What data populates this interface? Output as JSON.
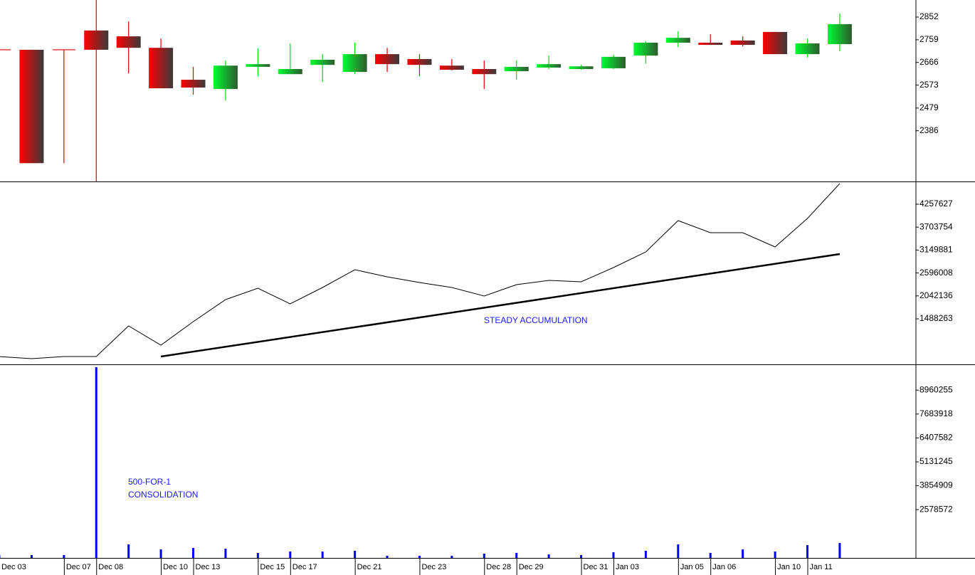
{
  "chart_data": [
    {
      "type": "candlestick",
      "open": [
        2718,
        2718,
        2718,
        2797,
        2773,
        2726,
        2595,
        2557,
        2648,
        2618,
        2656,
        2627,
        2700,
        2680,
        2653,
        2639,
        2630,
        2645,
        2639,
        2642,
        2694,
        2747,
        2747,
        2756,
        2791,
        2700,
        2741
      ],
      "high": [
        2718,
        2718,
        2718,
        2930,
        2834,
        2764,
        2648,
        2674,
        2724,
        2744,
        2700,
        2747,
        2726,
        2700,
        2680,
        2674,
        2674,
        2694,
        2656,
        2697,
        2753,
        2794,
        2782,
        2773,
        2791,
        2764,
        2867
      ],
      "low": [
        2253,
        2253,
        2253,
        2170,
        2621,
        2560,
        2534,
        2510,
        2610,
        2618,
        2586,
        2618,
        2627,
        2610,
        2633,
        2557,
        2595,
        2639,
        2636,
        2639,
        2662,
        2729,
        2738,
        2732,
        2700,
        2686,
        2712
      ],
      "close": [
        2718,
        2253,
        2718,
        2718,
        2726,
        2560,
        2563,
        2653,
        2659,
        2639,
        2677,
        2700,
        2659,
        2656,
        2636,
        2618,
        2648,
        2659,
        2650,
        2689,
        2747,
        2767,
        2738,
        2738,
        2700,
        2744,
        2823
      ],
      "up_color": "#00e000",
      "down_color": "#e00000",
      "ylim": [
        2178,
        2922
      ],
      "yticks": [
        2386,
        2479,
        2573,
        2666,
        2759,
        2852
      ]
    },
    {
      "type": "line",
      "values": [
        576613,
        525010,
        576613,
        576613,
        1316256,
        851829,
        1419462,
        1952693,
        2227909,
        1849487,
        2245110,
        2675135,
        2503125,
        2365517,
        2245110,
        2038698,
        2313914,
        2417120,
        2382718,
        2726738,
        3105160,
        3862004,
        3569587,
        3569587,
        3225567,
        3913607,
        4756456
      ],
      "color": "#000000",
      "trend": {
        "x": [
          5,
          26
        ],
        "values": [
          576613,
          3053557
        ],
        "color": "#000000"
      },
      "annotation": "STEADY ACCUMULATION",
      "ylim": [
        387400,
        4790860
      ],
      "yticks": [
        1488263,
        2042136,
        2596008,
        3149881,
        3703754,
        4257627
      ]
    },
    {
      "type": "bar",
      "categories": [
        "Dec 03",
        null,
        "Dec 07",
        "Dec 08",
        null,
        "Dec 10",
        "Dec 13",
        null,
        "Dec 15",
        "Dec 17",
        null,
        "Dec 21",
        null,
        "Dec 23",
        null,
        "Dec 28",
        "Dec 29",
        null,
        "Dec 31",
        "Jan 03",
        null,
        "Jan 05",
        "Jan 06",
        null,
        "Jan 10",
        "Jan 11",
        null
      ],
      "values": [
        152000,
        152000,
        152000,
        10186000,
        722000,
        456000,
        532000,
        494000,
        266000,
        342000,
        342000,
        380000,
        114000,
        114000,
        114000,
        228000,
        266000,
        190000,
        152000,
        304000,
        380000,
        722000,
        266000,
        456000,
        342000,
        684000,
        798000
      ],
      "color": "#0000ff",
      "annotation": [
        "500-FOR-1",
        "CONSOLIDATION"
      ],
      "ylim": [
        0,
        10300000
      ],
      "yticks": [
        2578572,
        3854909,
        5131245,
        6407582,
        7683918,
        8960255
      ]
    }
  ]
}
